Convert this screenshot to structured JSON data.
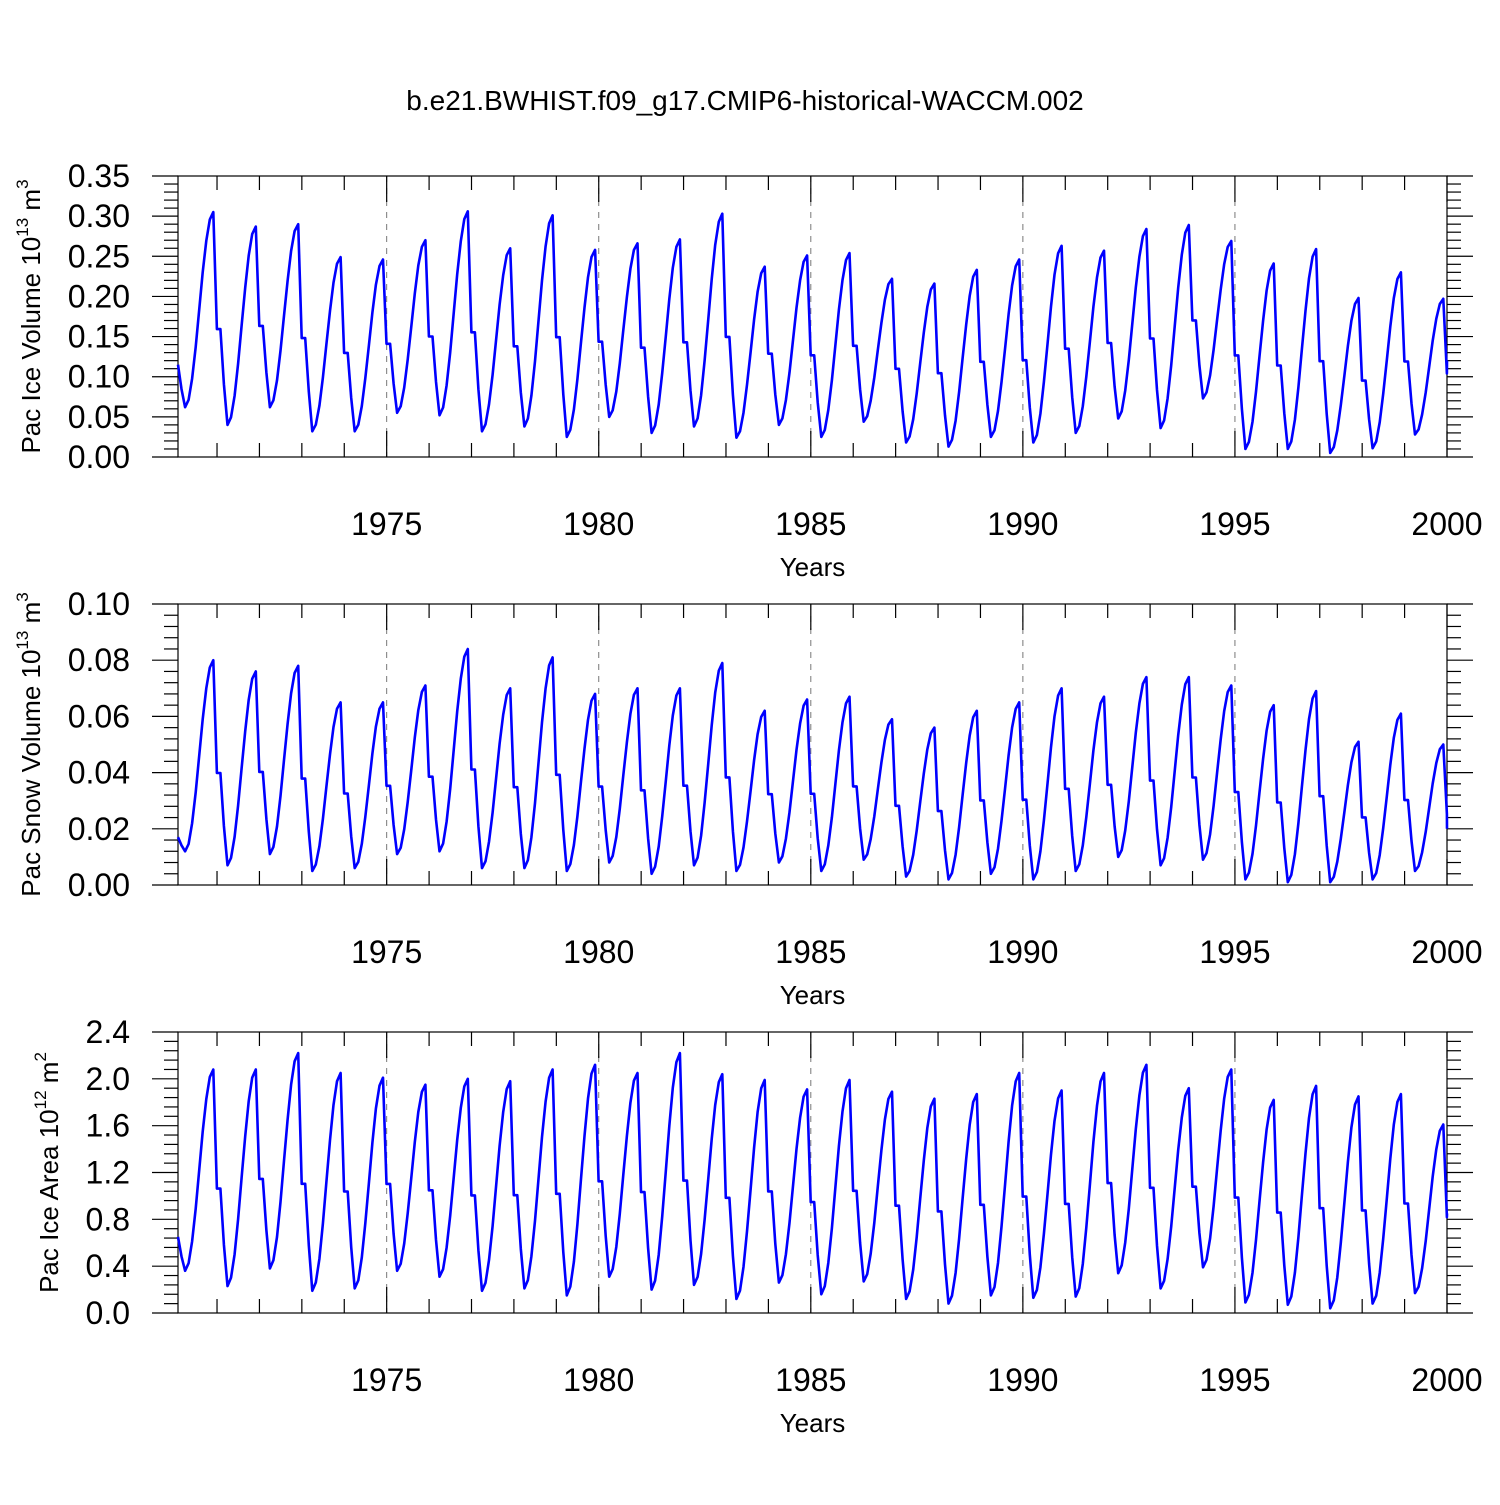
{
  "title": "b.e21.BWHIST.f09_g17.CMIP6-historical-WACCM.002",
  "colors": {
    "series": "#0000ff",
    "axis": "#000000",
    "grid": "#777777"
  },
  "chart_data": [
    {
      "type": "line",
      "ylabel": {
        "main": "Pac Ice Volume 10",
        "exp": "13",
        "unit": " m",
        "unit_exp": "3"
      },
      "xlabel": "Years",
      "xlim": [
        1970.08,
        2000.0
      ],
      "ylim": [
        0.0,
        0.35
      ],
      "xticks": [
        "1975",
        "1980",
        "1985",
        "1990",
        "1995",
        "2000"
      ],
      "yticks": [
        "0.00",
        "0.05",
        "0.10",
        "0.15",
        "0.20",
        "0.25",
        "0.30",
        "0.35"
      ],
      "grid": "dashed vertical at 5-year ticks",
      "series": [
        {
          "name": "Pac Ice Volume",
          "interval": "monthly",
          "start": 1970.08,
          "annual": [
            {
              "max": 0.305,
              "min": 0.062,
              "jan": 0.115
            },
            {
              "max": 0.287,
              "min": 0.04
            },
            {
              "max": 0.29,
              "min": 0.062
            },
            {
              "max": 0.249,
              "min": 0.032
            },
            {
              "max": 0.246,
              "min": 0.032
            },
            {
              "max": 0.27,
              "min": 0.055
            },
            {
              "max": 0.306,
              "min": 0.052
            },
            {
              "max": 0.26,
              "min": 0.032
            },
            {
              "max": 0.301,
              "min": 0.038
            },
            {
              "max": 0.258,
              "min": 0.025
            },
            {
              "max": 0.266,
              "min": 0.05
            },
            {
              "max": 0.271,
              "min": 0.03
            },
            {
              "max": 0.303,
              "min": 0.038
            },
            {
              "max": 0.237,
              "min": 0.024
            },
            {
              "max": 0.251,
              "min": 0.04
            },
            {
              "max": 0.254,
              "min": 0.025
            },
            {
              "max": 0.222,
              "min": 0.044
            },
            {
              "max": 0.216,
              "min": 0.018
            },
            {
              "max": 0.233,
              "min": 0.013
            },
            {
              "max": 0.246,
              "min": 0.025
            },
            {
              "max": 0.263,
              "min": 0.018
            },
            {
              "max": 0.257,
              "min": 0.03
            },
            {
              "max": 0.284,
              "min": 0.048
            },
            {
              "max": 0.289,
              "min": 0.036
            },
            {
              "max": 0.269,
              "min": 0.073
            },
            {
              "max": 0.241,
              "min": 0.01
            },
            {
              "max": 0.259,
              "min": 0.01
            },
            {
              "max": 0.198,
              "min": 0.005
            },
            {
              "max": 0.23,
              "min": 0.011
            },
            {
              "max": 0.197,
              "min": 0.028,
              "end": 0.12
            }
          ]
        }
      ]
    },
    {
      "type": "line",
      "ylabel": {
        "main": "Pac Snow Volume 10",
        "exp": "13",
        "unit": " m",
        "unit_exp": "3"
      },
      "xlabel": "Years",
      "xlim": [
        1970.08,
        2000.0
      ],
      "ylim": [
        0.0,
        0.1
      ],
      "xticks": [
        "1975",
        "1980",
        "1985",
        "1990",
        "1995",
        "2000"
      ],
      "yticks": [
        "0.00",
        "0.02",
        "0.04",
        "0.06",
        "0.08",
        "0.10"
      ],
      "grid": "dashed vertical at 5-year ticks",
      "series": [
        {
          "name": "Pac Snow Volume",
          "interval": "monthly",
          "start": 1970.08,
          "annual": [
            {
              "max": 0.08,
              "min": 0.012,
              "jan": 0.017
            },
            {
              "max": 0.076,
              "min": 0.007
            },
            {
              "max": 0.078,
              "min": 0.011
            },
            {
              "max": 0.065,
              "min": 0.005
            },
            {
              "max": 0.065,
              "min": 0.006
            },
            {
              "max": 0.071,
              "min": 0.011
            },
            {
              "max": 0.084,
              "min": 0.012
            },
            {
              "max": 0.07,
              "min": 0.006
            },
            {
              "max": 0.081,
              "min": 0.006
            },
            {
              "max": 0.068,
              "min": 0.005
            },
            {
              "max": 0.07,
              "min": 0.008
            },
            {
              "max": 0.07,
              "min": 0.004
            },
            {
              "max": 0.079,
              "min": 0.007
            },
            {
              "max": 0.062,
              "min": 0.005
            },
            {
              "max": 0.066,
              "min": 0.008
            },
            {
              "max": 0.067,
              "min": 0.005
            },
            {
              "max": 0.059,
              "min": 0.009
            },
            {
              "max": 0.056,
              "min": 0.003
            },
            {
              "max": 0.062,
              "min": 0.002
            },
            {
              "max": 0.065,
              "min": 0.004
            },
            {
              "max": 0.07,
              "min": 0.002
            },
            {
              "max": 0.067,
              "min": 0.005
            },
            {
              "max": 0.074,
              "min": 0.01
            },
            {
              "max": 0.074,
              "min": 0.007
            },
            {
              "max": 0.071,
              "min": 0.009
            },
            {
              "max": 0.064,
              "min": 0.002
            },
            {
              "max": 0.069,
              "min": 0.001
            },
            {
              "max": 0.051,
              "min": 0.001
            },
            {
              "max": 0.061,
              "min": 0.002
            },
            {
              "max": 0.05,
              "min": 0.005,
              "end": 0.02
            }
          ]
        }
      ]
    },
    {
      "type": "line",
      "ylabel": {
        "main": "Pac Ice Area 10",
        "exp": "12",
        "unit": " m",
        "unit_exp": "2"
      },
      "xlabel": "Years",
      "xlim": [
        1970.08,
        2000.0
      ],
      "ylim": [
        0.0,
        2.4
      ],
      "xticks": [
        "1975",
        "1980",
        "1985",
        "1990",
        "1995",
        "2000"
      ],
      "yticks": [
        "0.0",
        "0.4",
        "0.8",
        "1.2",
        "1.6",
        "2.0",
        "2.4"
      ],
      "grid": "dashed vertical at 5-year ticks",
      "series": [
        {
          "name": "Pac Ice Area",
          "interval": "monthly",
          "start": 1970.08,
          "annual": [
            {
              "max": 2.08,
              "min": 0.36,
              "jan": 0.65
            },
            {
              "max": 2.08,
              "min": 0.23
            },
            {
              "max": 2.22,
              "min": 0.38
            },
            {
              "max": 2.05,
              "min": 0.19
            },
            {
              "max": 2.01,
              "min": 0.21
            },
            {
              "max": 1.95,
              "min": 0.36
            },
            {
              "max": 2.0,
              "min": 0.31
            },
            {
              "max": 1.98,
              "min": 0.19
            },
            {
              "max": 2.08,
              "min": 0.21
            },
            {
              "max": 2.12,
              "min": 0.15
            },
            {
              "max": 2.05,
              "min": 0.31
            },
            {
              "max": 2.22,
              "min": 0.2
            },
            {
              "max": 2.04,
              "min": 0.24
            },
            {
              "max": 1.99,
              "min": 0.12
            },
            {
              "max": 1.91,
              "min": 0.26
            },
            {
              "max": 1.99,
              "min": 0.16
            },
            {
              "max": 1.89,
              "min": 0.27
            },
            {
              "max": 1.83,
              "min": 0.12
            },
            {
              "max": 1.87,
              "min": 0.08
            },
            {
              "max": 2.05,
              "min": 0.15
            },
            {
              "max": 1.9,
              "min": 0.13
            },
            {
              "max": 2.05,
              "min": 0.14
            },
            {
              "max": 2.12,
              "min": 0.34
            },
            {
              "max": 1.92,
              "min": 0.21
            },
            {
              "max": 2.08,
              "min": 0.39
            },
            {
              "max": 1.82,
              "min": 0.09
            },
            {
              "max": 1.94,
              "min": 0.07
            },
            {
              "max": 1.85,
              "min": 0.04
            },
            {
              "max": 1.87,
              "min": 0.08
            },
            {
              "max": 1.61,
              "min": 0.17,
              "end": 0.85
            }
          ]
        }
      ]
    }
  ]
}
